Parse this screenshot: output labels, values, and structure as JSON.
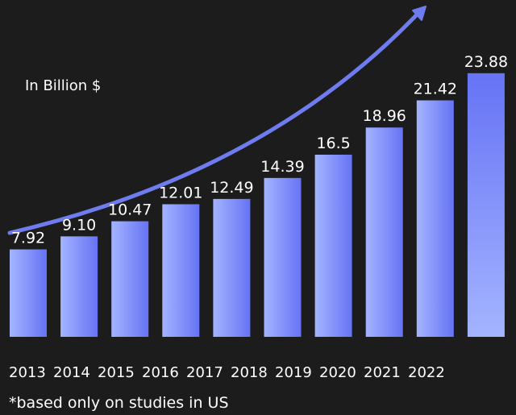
{
  "unit_label": "In Billion $",
  "footnote": "*based only on studies in US",
  "colors": {
    "background": "#1c1c1c",
    "bar_light": "#a4b4ff",
    "bar_dark": "#6673f5",
    "arrow": "#6f7cf0",
    "text": "#ffffff"
  },
  "chart_data": {
    "type": "bar",
    "title": "",
    "xlabel": "",
    "ylabel": "",
    "unit": "In Billion $",
    "categories": [
      "2013",
      "2014",
      "2015",
      "2016",
      "2017",
      "2018",
      "2019",
      "2020",
      "2021",
      "2022"
    ],
    "values": [
      7.92,
      9.1,
      10.47,
      12.01,
      12.49,
      14.39,
      16.5,
      18.96,
      21.42,
      23.88
    ],
    "data_labels": [
      "7.92",
      "9.10",
      "10.47",
      "12.01",
      "12.49",
      "14.39",
      "16.5",
      "18.96",
      "21.42",
      "23.88"
    ],
    "ylim": [
      0,
      24
    ],
    "grid": false,
    "legend": "none",
    "annotation": "upward trend arrow"
  }
}
